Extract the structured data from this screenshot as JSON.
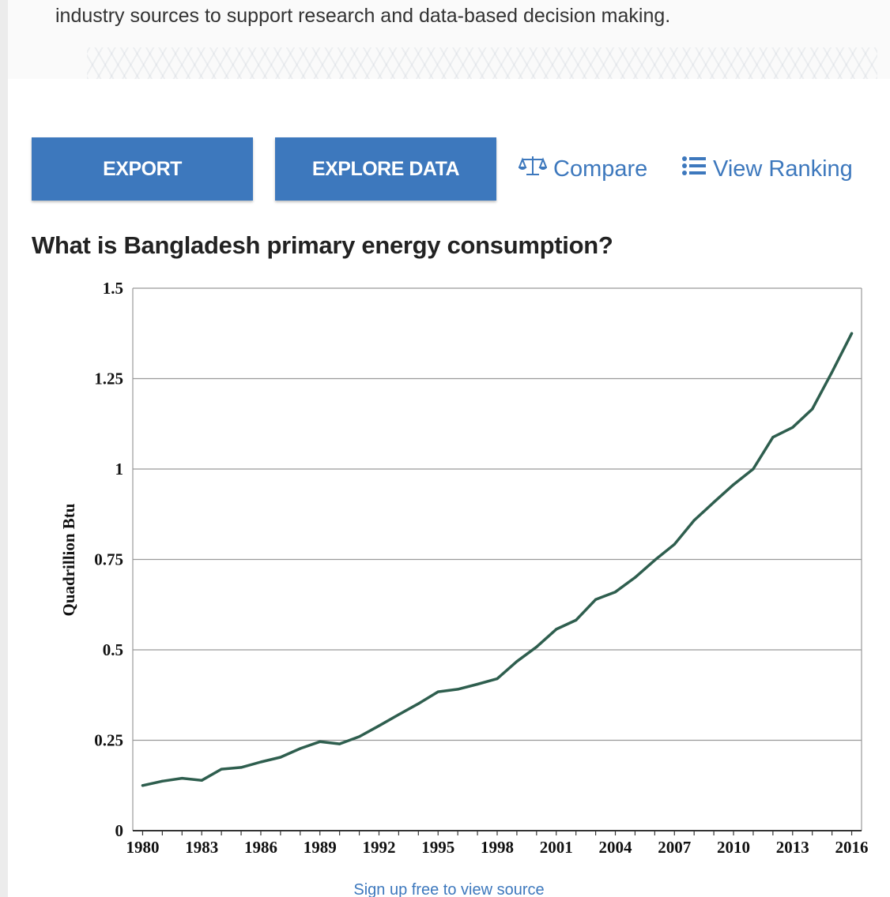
{
  "hero": {
    "description": "industry sources to support research and data-based decision making."
  },
  "toolbar": {
    "export_label": "EXPORT",
    "explore_label": "EXPLORE DATA",
    "compare_label": "Compare",
    "ranking_label": "View Ranking"
  },
  "colors": {
    "accent": "#3d78bd",
    "line": "#2e5e4e",
    "grid": "#999999"
  },
  "icons": {
    "compare": "scale-icon",
    "ranking": "list-icon"
  },
  "chart": {
    "title": "What is Bangladesh primary energy consumption?"
  },
  "source": {
    "label": "Sign up free to view source"
  },
  "chart_data": {
    "type": "line",
    "title": "What is Bangladesh primary energy consumption?",
    "xlabel": "",
    "ylabel": "Quadrillion Btu",
    "ylim": [
      0,
      1.5
    ],
    "xlim": [
      1979.5,
      2016.5
    ],
    "yticks": [
      0,
      0.25,
      0.5,
      0.75,
      1,
      1.25,
      1.5
    ],
    "ytick_labels": [
      "0",
      "0.25",
      "0.5",
      "0.75",
      "1",
      "1.25",
      "1.5"
    ],
    "xticks": [
      1980,
      1983,
      1986,
      1989,
      1992,
      1995,
      1998,
      2001,
      2004,
      2007,
      2010,
      2013,
      2016
    ],
    "grid": true,
    "legend": "none",
    "series": [
      {
        "x": [
          1980,
          1981,
          1982,
          1983,
          1984,
          1985,
          1986,
          1987,
          1988,
          1989,
          1990,
          1991,
          1992,
          1993,
          1994,
          1995,
          1996,
          1997,
          1998,
          1999,
          2000,
          2001,
          2002,
          2003,
          2004,
          2005,
          2006,
          2007,
          2008,
          2009,
          2010,
          2011,
          2012,
          2013,
          2014,
          2015,
          2016
        ],
        "values": [
          0.125,
          0.137,
          0.145,
          0.139,
          0.17,
          0.175,
          0.19,
          0.203,
          0.227,
          0.246,
          0.24,
          0.26,
          0.29,
          0.321,
          0.351,
          0.384,
          0.391,
          0.405,
          0.42,
          0.468,
          0.508,
          0.557,
          0.582,
          0.639,
          0.66,
          0.7,
          0.748,
          0.792,
          0.858,
          0.908,
          0.957,
          1.0,
          1.088,
          1.115,
          1.166,
          1.268,
          1.375
        ]
      }
    ]
  }
}
